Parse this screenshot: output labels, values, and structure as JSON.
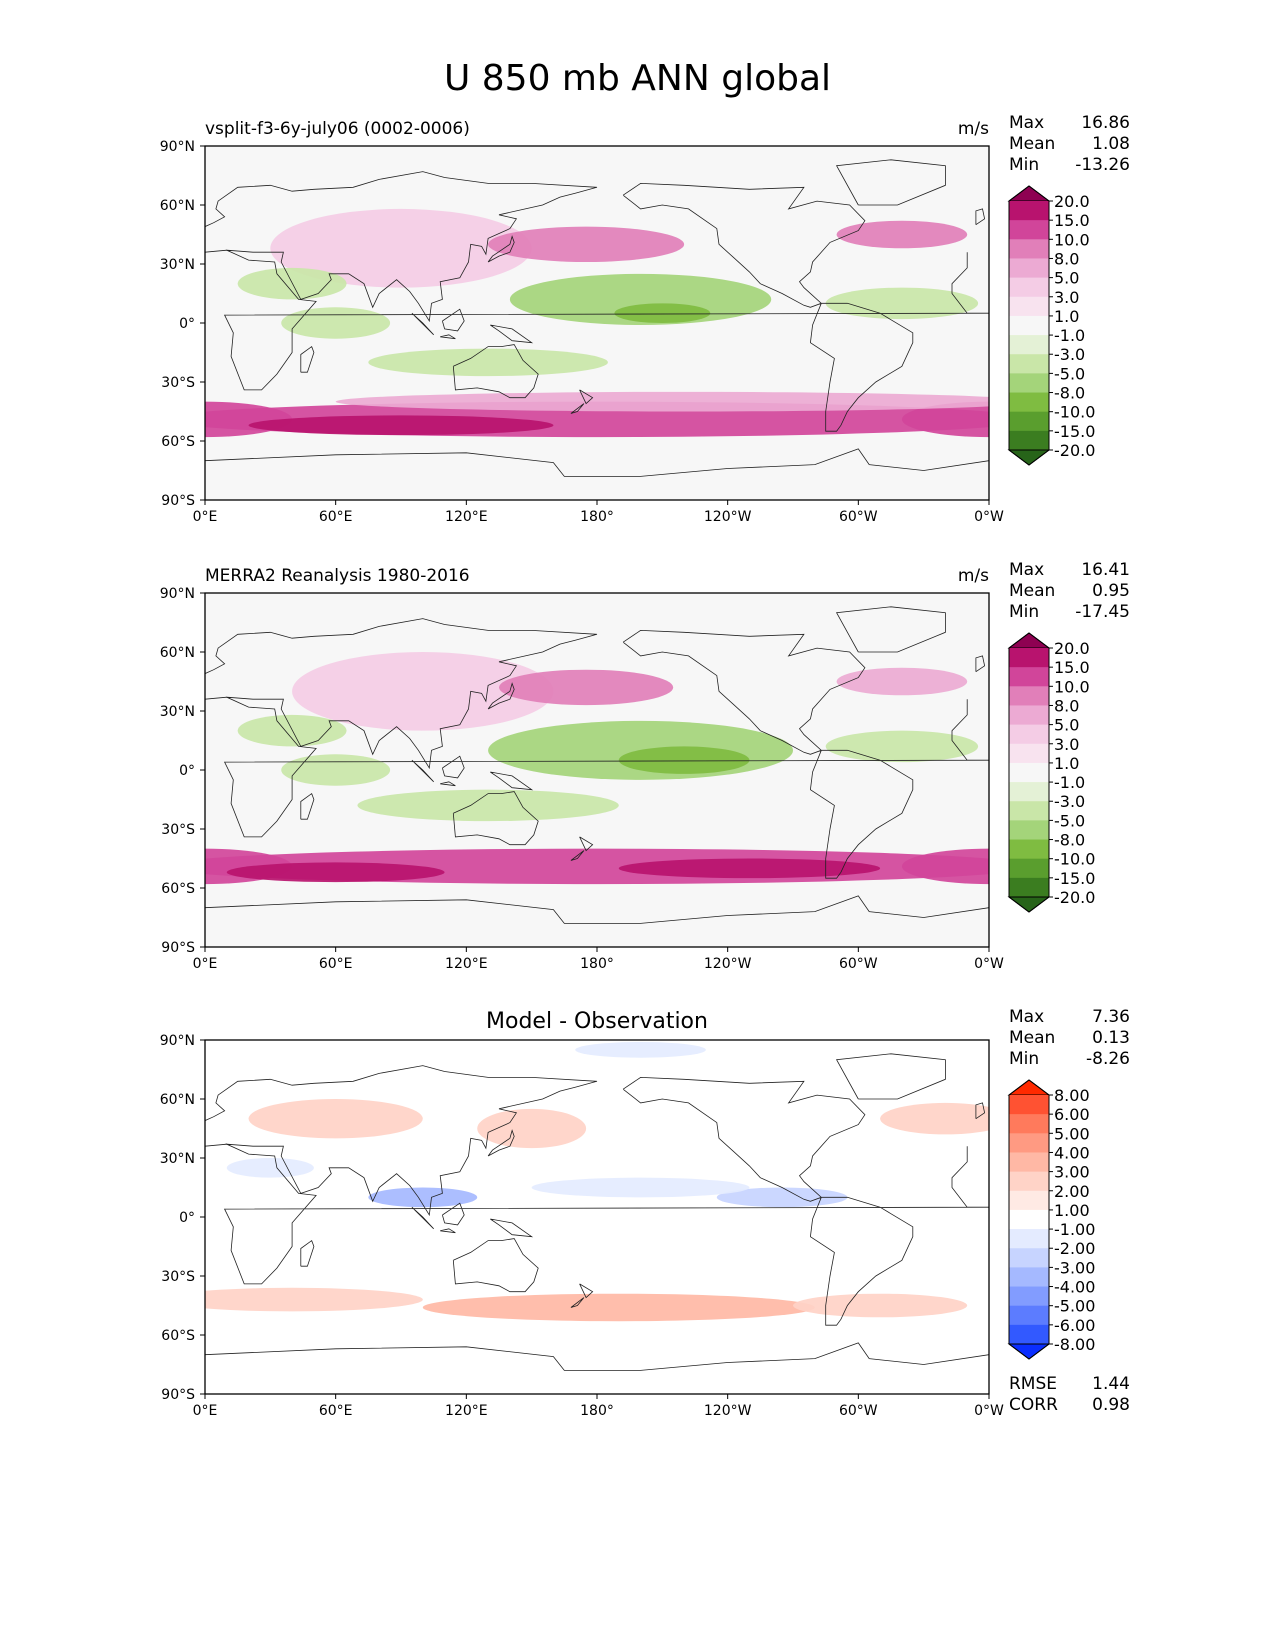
{
  "title": "U 850 mb ANN global",
  "chart_data": [
    {
      "type": "heatmap",
      "title": "vsplit-f3-6y-july06 (0002-0006)",
      "units": "m/s",
      "x_ticks": [
        "0°E",
        "60°E",
        "120°E",
        "180°",
        "120°W",
        "60°W",
        "0°W"
      ],
      "y_ticks": [
        "90°N",
        "60°N",
        "30°N",
        "0°",
        "30°S",
        "60°S",
        "90°S"
      ],
      "xlim": [
        0,
        360
      ],
      "ylim": [
        -90,
        90
      ],
      "stats": [
        {
          "label": "Max",
          "value": "16.86"
        },
        {
          "label": "Mean",
          "value": "1.08"
        },
        {
          "label": "Min",
          "value": "-13.26"
        }
      ],
      "colorbar": {
        "levels": [
          "20.0",
          "15.0",
          "10.0",
          "8.0",
          "5.0",
          "3.0",
          "1.0",
          "-1.0",
          "-3.0",
          "-5.0",
          "-8.0",
          "-10.0",
          "-15.0",
          "-20.0"
        ],
        "colors": [
          "#8e0152",
          "#b8136e",
          "#d1459a",
          "#e17fb9",
          "#ecaad3",
          "#f4cce5",
          "#f8e3ef",
          "#f7f7f7",
          "#e4f1d6",
          "#c9e6a8",
          "#a4d47a",
          "#7fbc41",
          "#5a9e2e",
          "#3b7d20",
          "#276419"
        ]
      }
    },
    {
      "type": "heatmap",
      "title": "MERRA2 Reanalysis 1980-2016",
      "units": "m/s",
      "x_ticks": [
        "0°E",
        "60°E",
        "120°E",
        "180°",
        "120°W",
        "60°W",
        "0°W"
      ],
      "y_ticks": [
        "90°N",
        "60°N",
        "30°N",
        "0°",
        "30°S",
        "60°S",
        "90°S"
      ],
      "xlim": [
        0,
        360
      ],
      "ylim": [
        -90,
        90
      ],
      "stats": [
        {
          "label": "Max",
          "value": "16.41"
        },
        {
          "label": "Mean",
          "value": "0.95"
        },
        {
          "label": "Min",
          "value": "-17.45"
        }
      ],
      "colorbar": {
        "levels": [
          "20.0",
          "15.0",
          "10.0",
          "8.0",
          "5.0",
          "3.0",
          "1.0",
          "-1.0",
          "-3.0",
          "-5.0",
          "-8.0",
          "-10.0",
          "-15.0",
          "-20.0"
        ],
        "colors": [
          "#8e0152",
          "#b8136e",
          "#d1459a",
          "#e17fb9",
          "#ecaad3",
          "#f4cce5",
          "#f8e3ef",
          "#f7f7f7",
          "#e4f1d6",
          "#c9e6a8",
          "#a4d47a",
          "#7fbc41",
          "#5a9e2e",
          "#3b7d20",
          "#276419"
        ]
      }
    },
    {
      "type": "heatmap",
      "title": "Model - Observation",
      "units": "",
      "x_ticks": [
        "0°E",
        "60°E",
        "120°E",
        "180°",
        "120°W",
        "60°W",
        "0°W"
      ],
      "y_ticks": [
        "90°N",
        "60°N",
        "30°N",
        "0°",
        "30°S",
        "60°S",
        "90°S"
      ],
      "xlim": [
        0,
        360
      ],
      "ylim": [
        -90,
        90
      ],
      "stats": [
        {
          "label": "Max",
          "value": "7.36"
        },
        {
          "label": "Mean",
          "value": "0.13"
        },
        {
          "label": "Min",
          "value": "-8.26"
        }
      ],
      "extra_stats": [
        {
          "label": "RMSE",
          "value": "1.44"
        },
        {
          "label": "CORR",
          "value": "0.98"
        }
      ],
      "colorbar": {
        "levels": [
          "8.00",
          "6.00",
          "5.00",
          "4.00",
          "3.00",
          "2.00",
          "1.00",
          "-1.00",
          "-2.00",
          "-3.00",
          "-4.00",
          "-5.00",
          "-6.00",
          "-8.00"
        ],
        "colors": [
          "#ff2a00",
          "#ff5232",
          "#ff7a5c",
          "#ff9a82",
          "#ffb8a5",
          "#ffd3c7",
          "#ffeae4",
          "#ffffff",
          "#e4ebff",
          "#c7d4ff",
          "#a5b9ff",
          "#829cff",
          "#5c7cff",
          "#3259ff",
          "#0a2eff"
        ]
      }
    }
  ]
}
